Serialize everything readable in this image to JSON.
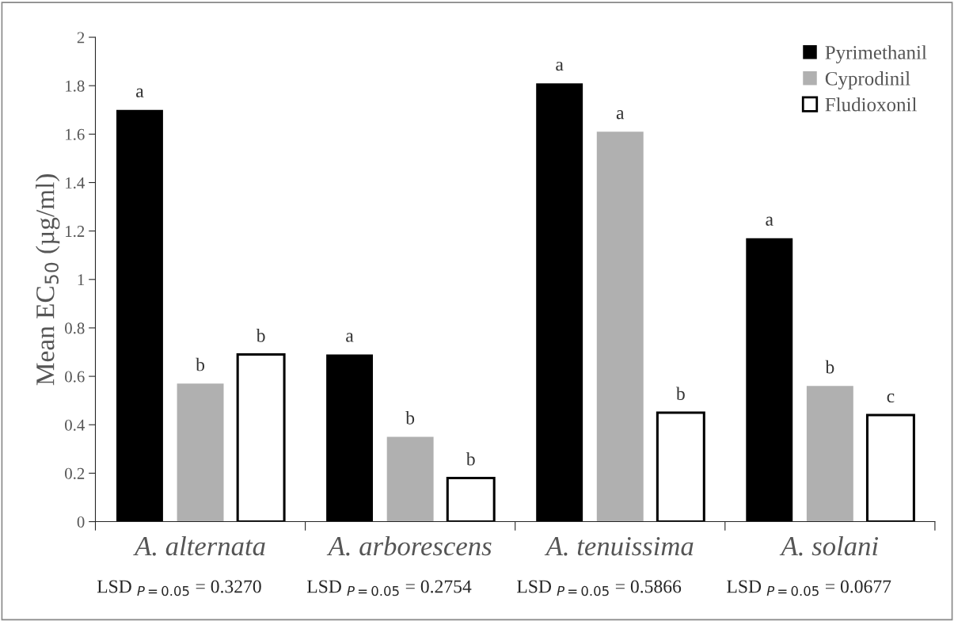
{
  "chart_data": {
    "type": "bar",
    "ylabel": "Mean EC$_{50}$ (µg/ml)",
    "categories": [
      "A. alternata",
      "A. arborescens",
      "A. tenuissima",
      "A. solani"
    ],
    "series": [
      {
        "name": "Pyrimethanil",
        "color": "#000000",
        "values": [
          1.7,
          0.69,
          1.81,
          1.17
        ],
        "value_labels": [
          "a",
          "a",
          "a",
          "a"
        ]
      },
      {
        "name": "Cyprodinil",
        "color": "#b0b0b0",
        "values": [
          0.57,
          0.35,
          1.61,
          0.56
        ],
        "value_labels": [
          "b",
          "b",
          "a",
          "b"
        ]
      },
      {
        "name": "Fludioxonil",
        "color": "#ffffff",
        "values": [
          0.69,
          0.18,
          0.45,
          0.44
        ],
        "value_labels": [
          "b",
          "b",
          "b",
          "c"
        ]
      }
    ],
    "ylim": [
      0,
      2
    ],
    "yticks": [
      0,
      0.2,
      0.4,
      0.6,
      0.8,
      1,
      1.2,
      1.4,
      1.6,
      1.8,
      2
    ],
    "grid": false,
    "legend": "top right",
    "annotations": [
      "LSD $_{P=0.05}$ = 0.3270",
      "LSD $_{P=0.05}$ = 0.2754",
      "LSD $_{P=0.05}$ = 0.5866",
      "LSD $_{P=0.05}$ = 0.0677"
    ]
  }
}
